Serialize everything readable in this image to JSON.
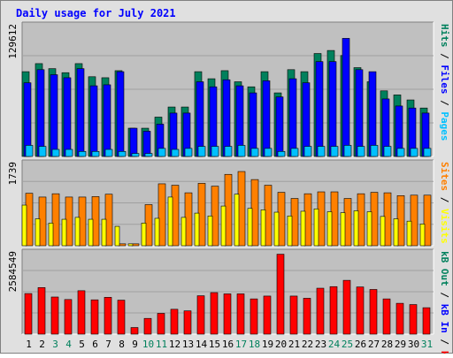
{
  "colors": {
    "background": "#e0e0e0",
    "plot_bg": "#c0c0c0",
    "title": "#0000ff",
    "hits": "#00805c",
    "files": "#0000ff",
    "pages": "#00c0ff",
    "visits": "#ffff00",
    "sites": "#ff8000",
    "kbytes": "#ff0000",
    "weekend_label": "#00805c",
    "weekday_label": "#000000"
  },
  "chart_data": [
    {
      "type": "bar",
      "title": "Daily usage for July 2021",
      "panel": "top",
      "max_label": "129612",
      "ylim": [
        0,
        129612
      ],
      "legend": [
        {
          "text": "Pages",
          "color_key": "pages"
        },
        {
          "text": "Files",
          "color_key": "files"
        },
        {
          "text": "Hits",
          "color_key": "hits"
        }
      ],
      "categories": [
        "1",
        "2",
        "3",
        "4",
        "5",
        "6",
        "7",
        "8",
        "9",
        "10",
        "11",
        "12",
        "13",
        "14",
        "15",
        "16",
        "17",
        "18",
        "19",
        "20",
        "21",
        "22",
        "23",
        "24",
        "25",
        "26",
        "27",
        "28",
        "29",
        "30",
        "31"
      ],
      "weekend_days": [
        "3",
        "4",
        "10",
        "11",
        "17",
        "18",
        "24",
        "25",
        "31"
      ],
      "series": [
        {
          "name": "Hits",
          "color_key": "hits",
          "values": [
            84000,
            92000,
            87000,
            83000,
            92000,
            79000,
            78000,
            85000,
            28000,
            28000,
            39000,
            49000,
            49000,
            84000,
            77000,
            85000,
            74000,
            69000,
            84000,
            63000,
            86000,
            84000,
            102000,
            105000,
            100000,
            88000,
            74000,
            65000,
            61000,
            56000,
            48000
          ]
        },
        {
          "name": "Files",
          "color_key": "files",
          "values": [
            73000,
            86000,
            81000,
            78000,
            87000,
            70000,
            71000,
            84000,
            28000,
            25000,
            32000,
            43000,
            43000,
            74000,
            69000,
            76000,
            70000,
            63000,
            75000,
            59000,
            77000,
            73000,
            94000,
            94000,
            117000,
            86000,
            84000,
            57000,
            50000,
            48000,
            43000
          ]
        },
        {
          "name": "Pages",
          "color_key": "pages",
          "values": [
            11000,
            10000,
            7000,
            7000,
            5000,
            5000,
            7000,
            5000,
            3000,
            3000,
            8000,
            7000,
            8000,
            10000,
            10000,
            10000,
            11000,
            8000,
            8000,
            5000,
            8000,
            10000,
            10000,
            10000,
            11000,
            10000,
            11000,
            10000,
            8000,
            8000,
            8000
          ]
        }
      ]
    },
    {
      "type": "bar",
      "panel": "middle",
      "max_label": "1739",
      "ylim": [
        0,
        1739
      ],
      "legend": [
        {
          "text": "Visits",
          "color_key": "visits"
        },
        {
          "text": "Sites",
          "color_key": "sites"
        }
      ],
      "categories": [
        "1",
        "2",
        "3",
        "4",
        "5",
        "6",
        "7",
        "8",
        "9",
        "10",
        "11",
        "12",
        "13",
        "14",
        "15",
        "16",
        "17",
        "18",
        "19",
        "20",
        "21",
        "22",
        "23",
        "24",
        "25",
        "26",
        "27",
        "28",
        "29",
        "30",
        "31"
      ],
      "series": [
        {
          "name": "Sites",
          "color_key": "sites",
          "values": [
            1110,
            1030,
            1100,
            1030,
            1030,
            1040,
            1090,
            40,
            40,
            870,
            1310,
            1280,
            1120,
            1320,
            1260,
            1510,
            1570,
            1400,
            1280,
            1130,
            1000,
            1100,
            1140,
            1140,
            1000,
            1100,
            1130,
            1120,
            1060,
            1070,
            1070
          ]
        },
        {
          "name": "Visits",
          "color_key": "visits",
          "values": [
            860,
            570,
            480,
            560,
            600,
            560,
            560,
            410,
            40,
            480,
            580,
            1030,
            600,
            690,
            630,
            840,
            1090,
            790,
            760,
            710,
            630,
            730,
            780,
            720,
            700,
            740,
            720,
            620,
            570,
            520,
            460
          ]
        }
      ]
    },
    {
      "type": "bar",
      "panel": "bottom",
      "max_label": "2584549",
      "ylim": [
        0,
        2584549
      ],
      "legend": [
        {
          "text": "kB F",
          "color_key": "kbytes"
        },
        {
          "text": "kB In",
          "color_key": "files"
        },
        {
          "text": "kB Out",
          "color_key": "hits"
        }
      ],
      "categories": [
        "1",
        "2",
        "3",
        "4",
        "5",
        "6",
        "7",
        "8",
        "9",
        "10",
        "11",
        "12",
        "13",
        "14",
        "15",
        "16",
        "17",
        "18",
        "19",
        "20",
        "21",
        "22",
        "23",
        "24",
        "25",
        "26",
        "27",
        "28",
        "29",
        "30",
        "31"
      ],
      "series": [
        {
          "name": "kB F",
          "color_key": "kbytes",
          "values": [
            1290000,
            1480000,
            1180000,
            1100000,
            1380000,
            1090000,
            1170000,
            1080000,
            210000,
            500000,
            660000,
            790000,
            740000,
            1220000,
            1320000,
            1280000,
            1280000,
            1120000,
            1210000,
            2540000,
            1210000,
            1140000,
            1460000,
            1510000,
            1710000,
            1500000,
            1420000,
            1120000,
            980000,
            940000,
            840000
          ]
        }
      ]
    }
  ]
}
